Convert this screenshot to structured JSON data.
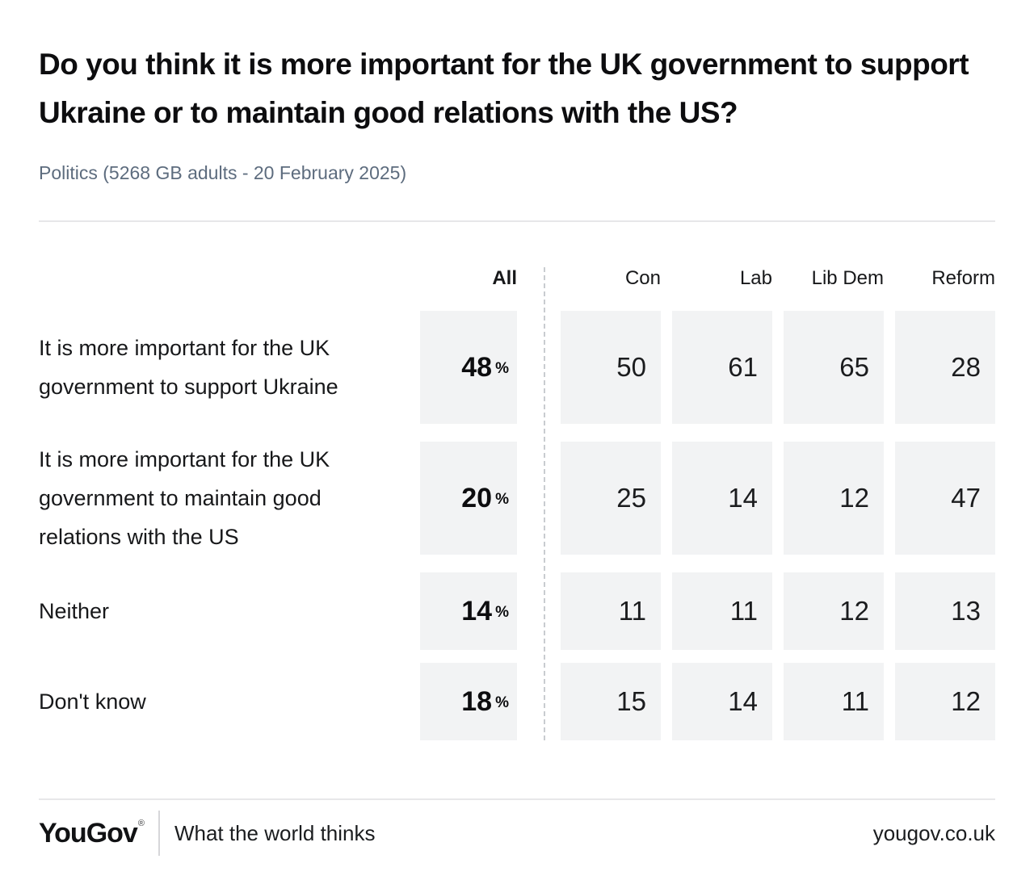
{
  "header": {
    "title": "Do you think it is more important for the UK government to support Ukraine or to maintain good relations with the US?",
    "subtitle": "Politics (5268 GB adults - 20 February 2025)"
  },
  "chart_data": {
    "type": "table",
    "title": "Do you think it is more important for the UK government to support Ukraine or to maintain good relations with the US?",
    "subtitle": "Politics (5268 GB adults - 20 February 2025)",
    "unit": "%",
    "columns": [
      "All",
      "Con",
      "Lab",
      "Lib Dem",
      "Reform"
    ],
    "rows": [
      {
        "label": "It is more important for the UK government to support Ukraine",
        "values": [
          48,
          50,
          61,
          65,
          28
        ]
      },
      {
        "label": "It is more important for the UK government to maintain good relations with the US",
        "values": [
          20,
          25,
          14,
          12,
          47
        ]
      },
      {
        "label": "Neither",
        "values": [
          14,
          11,
          11,
          12,
          13
        ]
      },
      {
        "label": "Don't know",
        "values": [
          18,
          15,
          14,
          11,
          12
        ]
      }
    ],
    "layout_hints": {
      "all_column_separated_by_dashed_line": true,
      "all_values_bold_with_percent_sign": true,
      "cell_background": "#f2f3f4"
    }
  },
  "footer": {
    "logo": "YouGov",
    "registered_mark": "®",
    "tagline": "What the world thinks",
    "website": "yougov.co.uk"
  },
  "colors": {
    "background": "#ffffff",
    "title_text": "#0d0d0f",
    "subtitle_text": "#5d6c7e",
    "body_text": "#17181a",
    "cell_background": "#f2f3f4",
    "divider": "#e7e7e9",
    "dashed_divider": "#c9ccd0"
  }
}
